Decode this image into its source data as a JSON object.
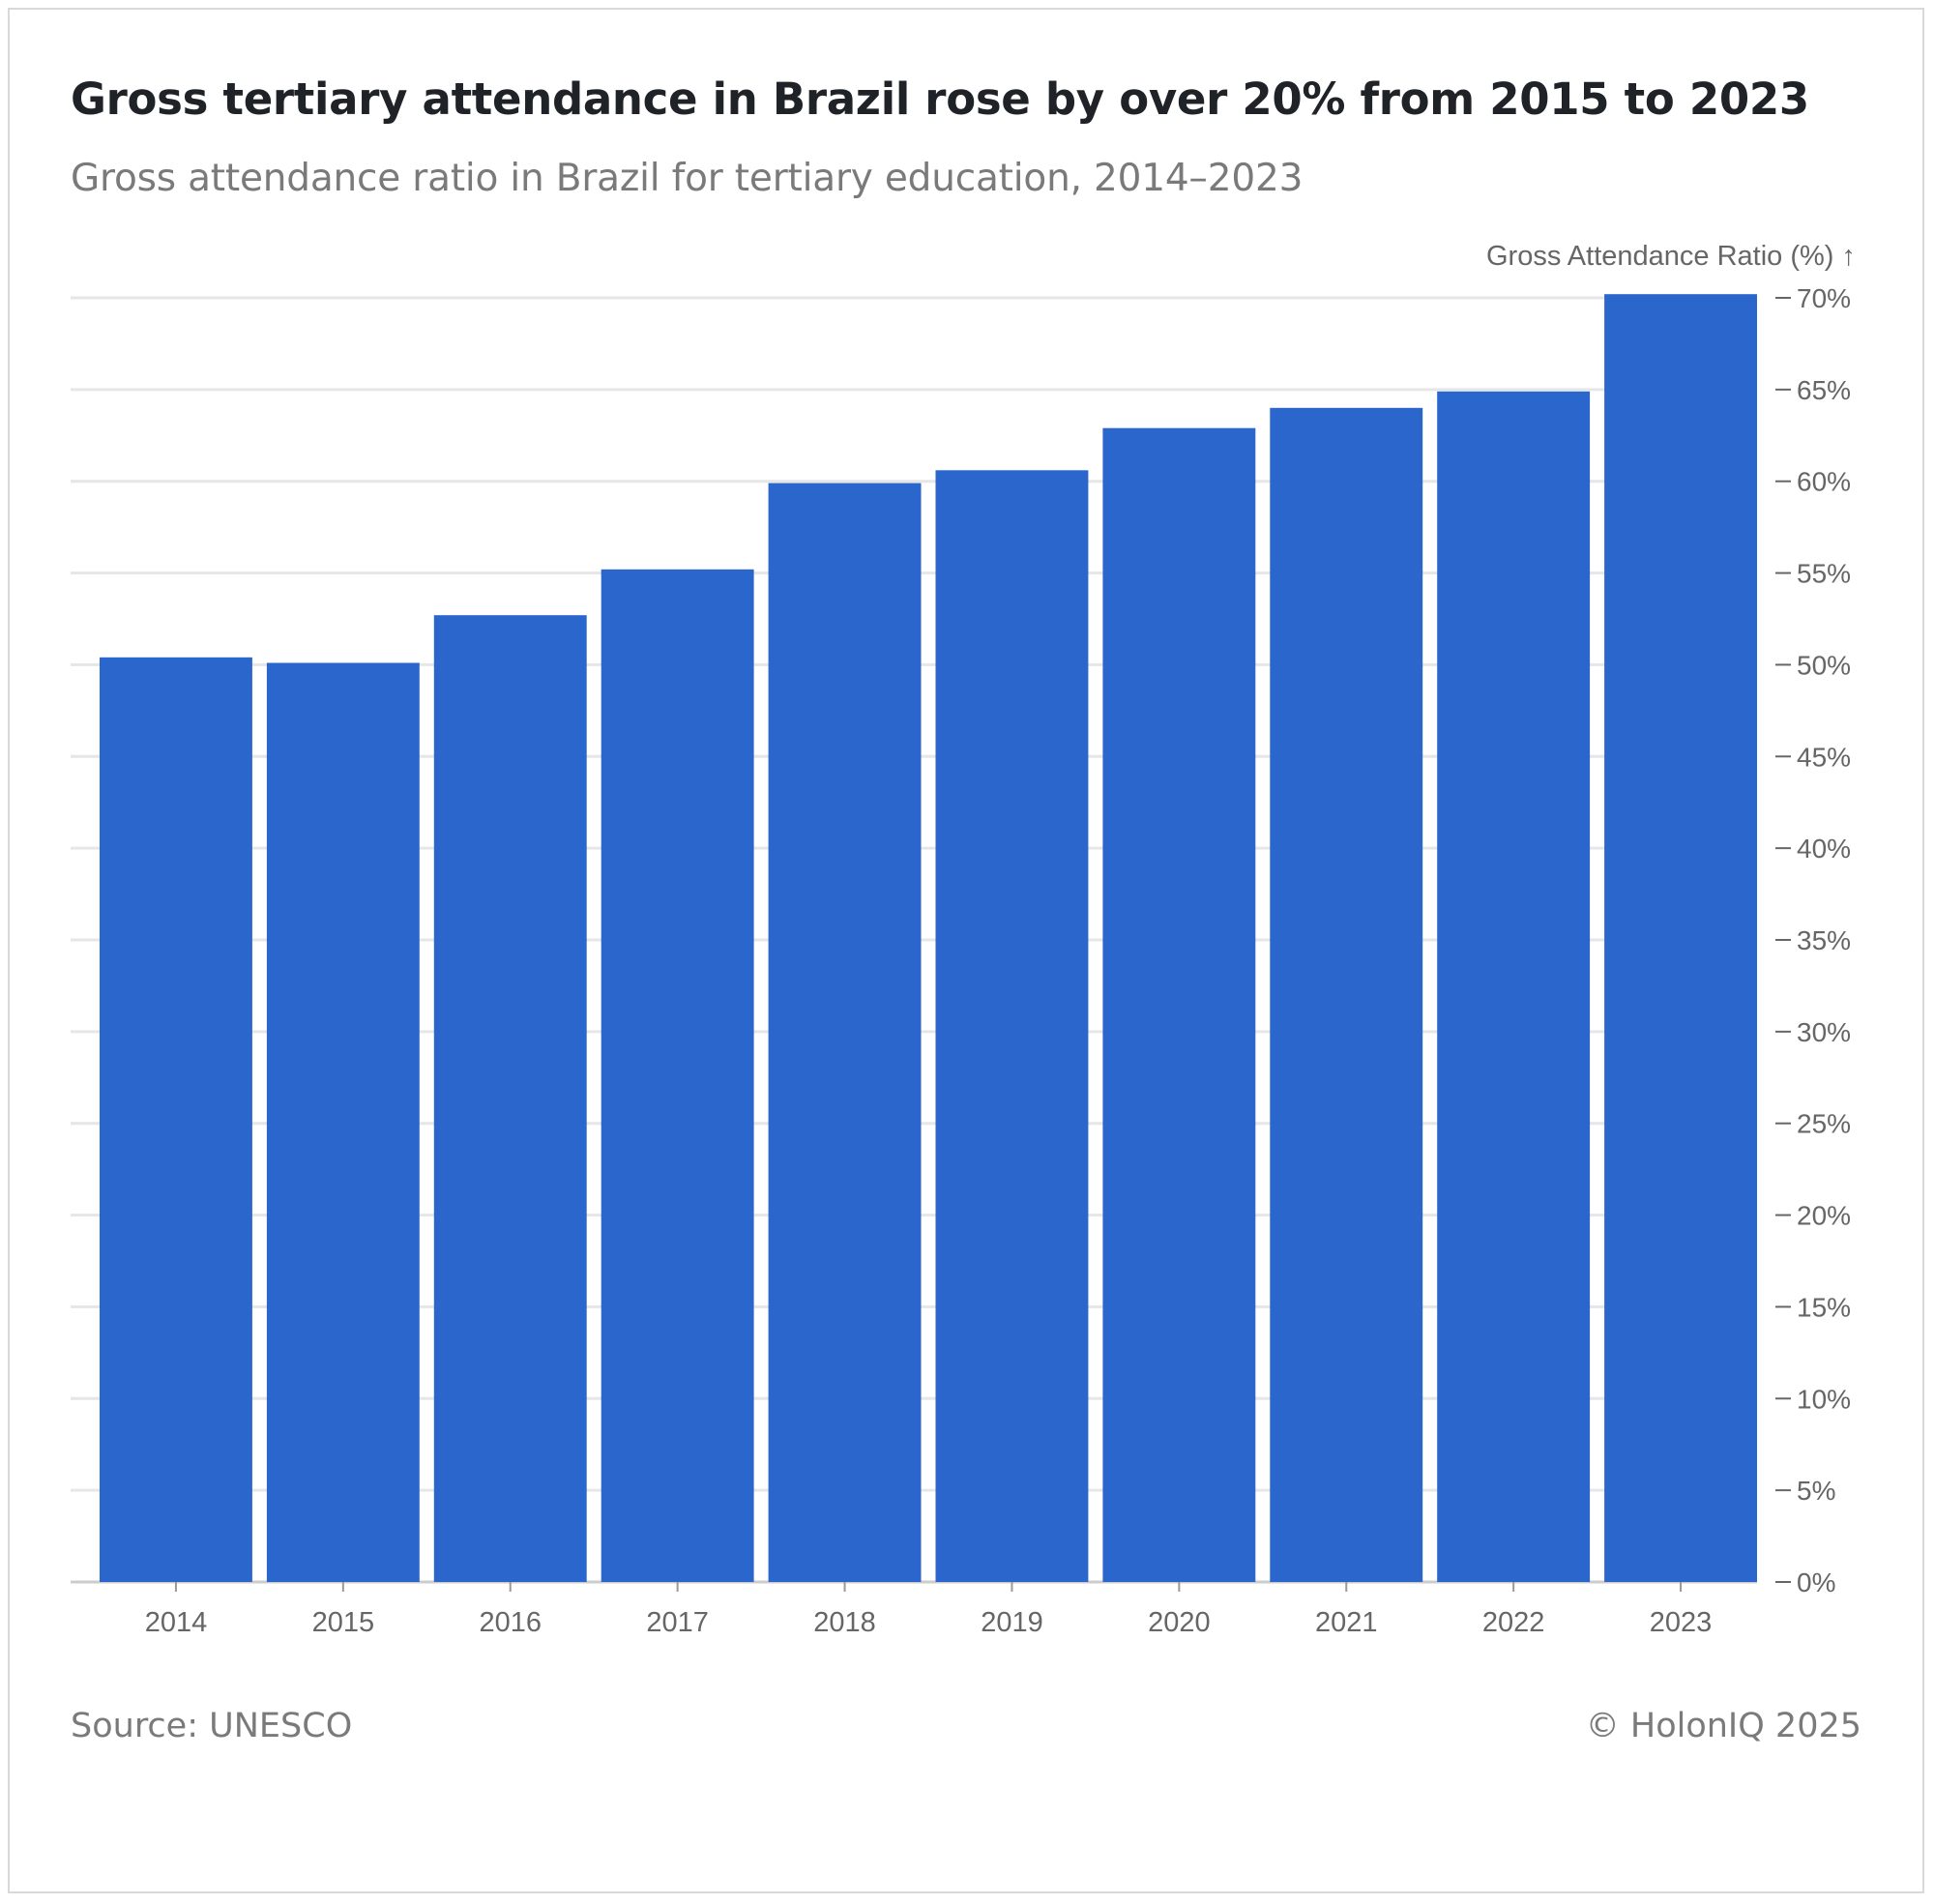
{
  "header": {
    "title": "Gross tertiary attendance in Brazil rose by over 20% from 2015 to 2023",
    "subtitle": "Gross attendance ratio in Brazil for tertiary education, 2014–2023"
  },
  "footer": {
    "source": "Source: UNESCO",
    "copyright": "© HolonIQ 2025"
  },
  "chart_data": {
    "type": "bar",
    "title": "Gross tertiary attendance in Brazil rose by over 20% from 2015 to 2023",
    "subtitle": "Gross attendance ratio in Brazil for tertiary education, 2014–2023",
    "xlabel": "",
    "ylabel": "Gross Attendance Ratio (%) ↑",
    "categories": [
      "2014",
      "2015",
      "2016",
      "2017",
      "2018",
      "2019",
      "2020",
      "2021",
      "2022",
      "2023"
    ],
    "values": [
      50.4,
      50.1,
      52.7,
      55.2,
      59.9,
      60.6,
      62.9,
      64.0,
      64.9,
      70.2
    ],
    "ylim": [
      0,
      70
    ],
    "yticks": [
      0,
      5,
      10,
      15,
      20,
      25,
      30,
      35,
      40,
      45,
      50,
      55,
      60,
      65,
      70
    ],
    "ytick_labels": [
      "0%",
      "5%",
      "10%",
      "15%",
      "20%",
      "25%",
      "30%",
      "35%",
      "40%",
      "45%",
      "50%",
      "55%",
      "60%",
      "65%",
      "70%"
    ],
    "y_axis_side": "right",
    "grid": true,
    "bar_color": "#2b66cc",
    "grid_color": "#e6e6e6"
  }
}
